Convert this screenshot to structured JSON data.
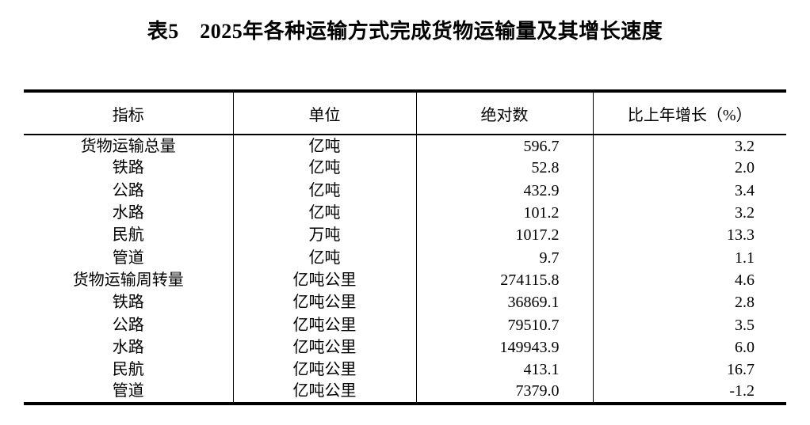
{
  "page": {
    "background": "#ffffff",
    "text_color": "#000000",
    "border_color": "#000000"
  },
  "title": "表5　2025年各种运输方式完成货物运输量及其增长速度",
  "table": {
    "headers": [
      "指标",
      "单位",
      "绝对数",
      "比上年增长（%）"
    ],
    "rows": [
      {
        "indicator": "货物运输总量",
        "unit": "亿吨",
        "absolute": "596.7",
        "growth": "3.2"
      },
      {
        "indicator": "铁路",
        "unit": "亿吨",
        "absolute": "52.8",
        "growth": "2.0"
      },
      {
        "indicator": "公路",
        "unit": "亿吨",
        "absolute": "432.9",
        "growth": "3.4"
      },
      {
        "indicator": "水路",
        "unit": "亿吨",
        "absolute": "101.2",
        "growth": "3.2"
      },
      {
        "indicator": "民航",
        "unit": "万吨",
        "absolute": "1017.2",
        "growth": "13.3"
      },
      {
        "indicator": "管道",
        "unit": "亿吨",
        "absolute": "9.7",
        "growth": "1.1"
      },
      {
        "indicator": "货物运输周转量",
        "unit": "亿吨公里",
        "absolute": "274115.8",
        "growth": "4.6"
      },
      {
        "indicator": "铁路",
        "unit": "亿吨公里",
        "absolute": "36869.1",
        "growth": "2.8"
      },
      {
        "indicator": "公路",
        "unit": "亿吨公里",
        "absolute": "79510.7",
        "growth": "3.5"
      },
      {
        "indicator": "水路",
        "unit": "亿吨公里",
        "absolute": "149943.9",
        "growth": "6.0"
      },
      {
        "indicator": "民航",
        "unit": "亿吨公里",
        "absolute": "413.1",
        "growth": "16.7"
      },
      {
        "indicator": "管道",
        "unit": "亿吨公里",
        "absolute": "7379.0",
        "growth": "-1.2"
      }
    ]
  }
}
